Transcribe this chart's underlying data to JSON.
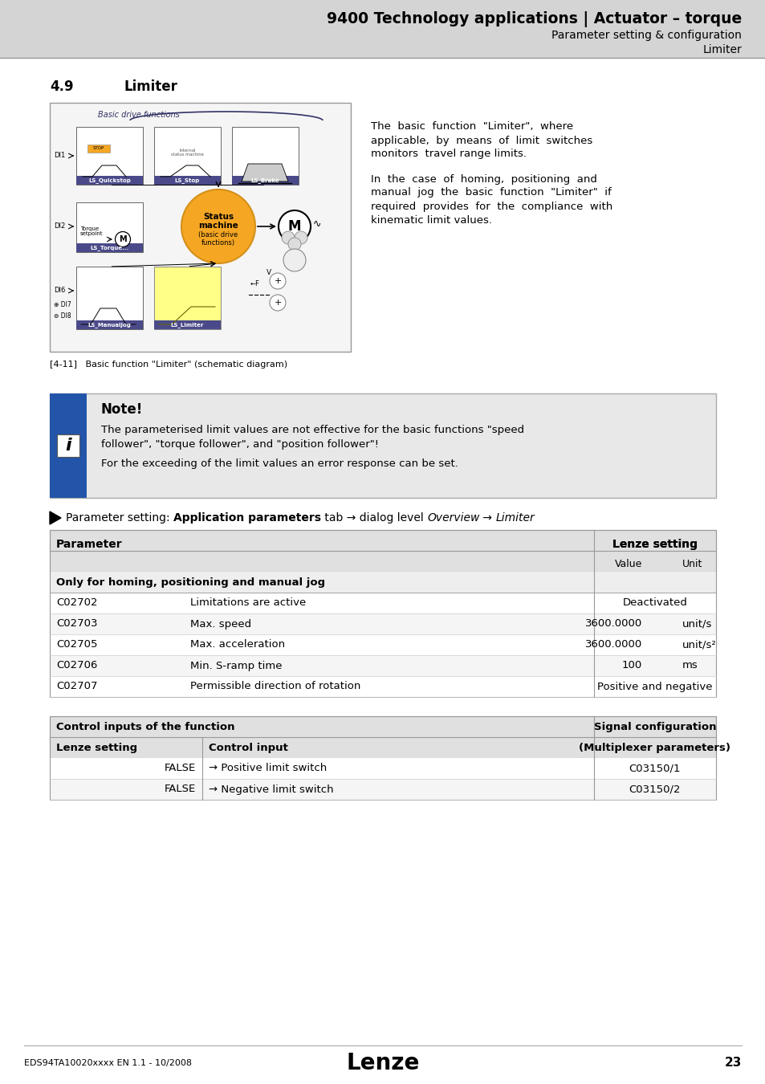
{
  "header_bg": "#d4d4d4",
  "header_title": "9400 Technology applications | Actuator – torque",
  "header_sub1": "Parameter setting & configuration",
  "header_sub2": "Limiter",
  "bg_color": "#ffffff",
  "section_num": "4.9",
  "section_title": "Limiter",
  "fig_caption": "[4-11]   Basic function \"Limiter\" (schematic diagram)",
  "note_title": "Note!",
  "note_line1": "The parameterised limit values are not effective for the basic functions \"speed",
  "note_line2": "follower\", \"torque follower\", and \"position follower\"!",
  "note_line3": "For the exceeding of the limit values an error response can be set.",
  "col1_header": "Parameter",
  "col2_header": "Lenze setting",
  "col2_sub1": "Value",
  "col2_sub2": "Unit",
  "group1_header": "Only for homing, positioning and manual jog",
  "table_rows": [
    [
      "C02702",
      "Limitations are active",
      "Deactivated",
      ""
    ],
    [
      "C02703",
      "Max. speed",
      "3600.0000",
      "unit/s"
    ],
    [
      "C02705",
      "Max. acceleration",
      "3600.0000",
      "unit/s²"
    ],
    [
      "C02706",
      "Min. S-ramp time",
      "100",
      "ms"
    ],
    [
      "C02707",
      "Permissible direction of rotation",
      "Positive and negative",
      ""
    ]
  ],
  "col3_header": "Signal configuration",
  "col3_sub": "(Multiplexer parameters)",
  "col4_header": "Control input",
  "group2_header": "Control inputs of the function",
  "lenze_setting_header": "Lenze setting",
  "table2_rows": [
    [
      "FALSE",
      "→ Positive limit switch",
      "C03150/1"
    ],
    [
      "FALSE",
      "→ Negative limit switch",
      "C03150/2"
    ]
  ],
  "footer_left": "EDS94TA10020xxxx EN 1.1 - 10/2008",
  "footer_page": "23"
}
